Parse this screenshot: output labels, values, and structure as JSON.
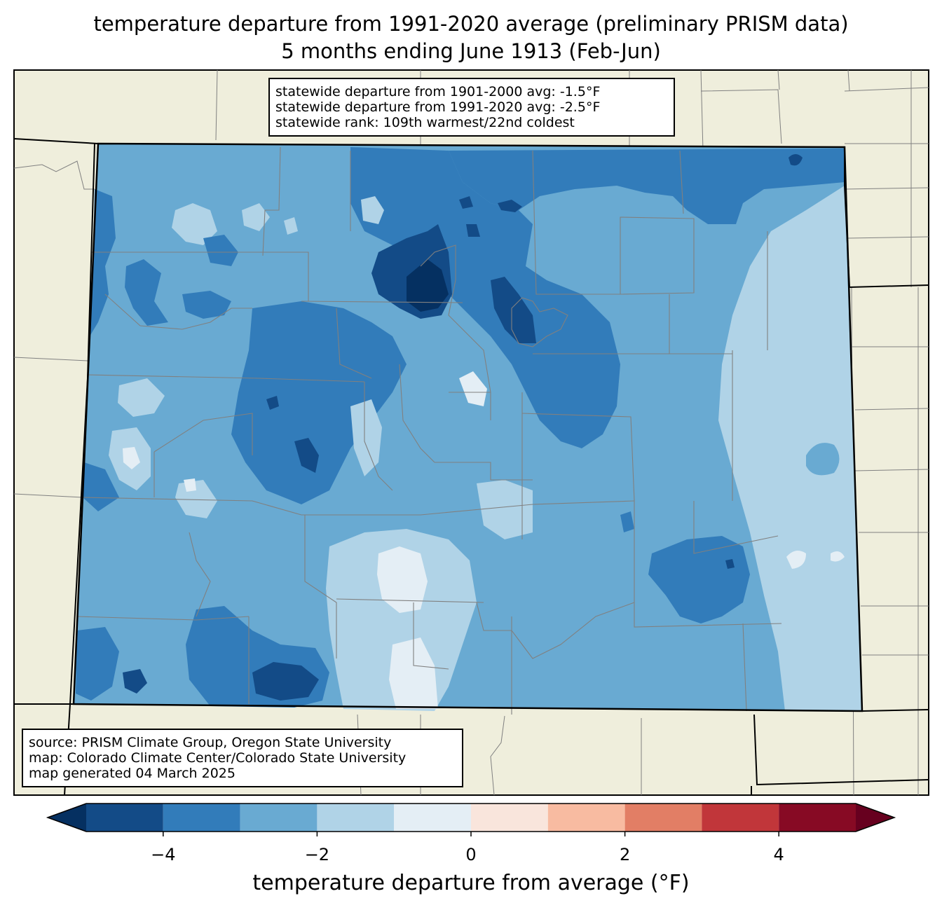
{
  "title": {
    "line1": "temperature departure from 1991-2020 average (preliminary PRISM data)",
    "line2": "5 months ending June 1913 (Feb-Jun)"
  },
  "stats": {
    "line1": "statewide departure from 1901-2000 avg: -1.5°F",
    "line2": "statewide departure from 1991-2020 avg: -2.5°F",
    "line3": "statewide rank: 109th warmest/22nd coldest"
  },
  "source": {
    "line1": "source: PRISM Climate Group, Oregon State University",
    "line2": "map: Colorado Climate Center/Colorado State University",
    "line3": "map generated 04 March 2025"
  },
  "colorbar": {
    "label": "temperature departure from average (°F)",
    "bounds": [
      -5,
      -4,
      -3,
      -2,
      -1,
      0,
      1,
      2,
      3,
      4,
      5
    ],
    "colors": [
      "#134b87",
      "#327cba",
      "#69aad2",
      "#b0d3e7",
      "#e4eef5",
      "#f9e5dc",
      "#f8bba1",
      "#e27e65",
      "#c1363a",
      "#870a24"
    ],
    "under_color": "#053061",
    "over_color": "#67001f",
    "ticks": [
      {
        "value": -4,
        "label": "−4"
      },
      {
        "value": -2,
        "label": "−2"
      },
      {
        "value": 0,
        "label": "0"
      },
      {
        "value": 2,
        "label": "2"
      },
      {
        "value": 4,
        "label": "4"
      }
    ]
  },
  "map": {
    "background_land": "#efeedc",
    "state_border": "#000000",
    "county_border": "#808080",
    "dominant_bin": -2.5
  }
}
